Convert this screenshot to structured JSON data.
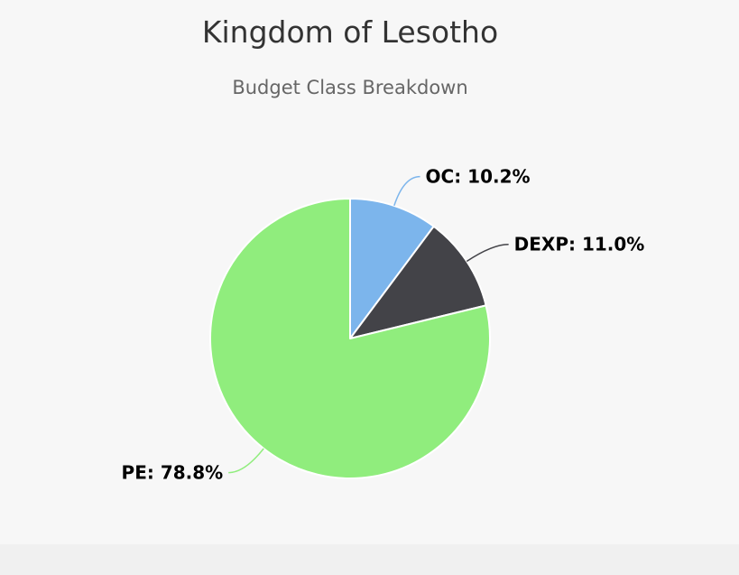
{
  "chart_data": {
    "type": "pie",
    "title": "Kingdom of Lesotho",
    "subtitle": "Budget Class Breakdown",
    "slices": [
      {
        "name": "OC",
        "value": 10.2,
        "label": "OC: 10.2%",
        "color": "#7cb5ec"
      },
      {
        "name": "DEXP",
        "value": 11.0,
        "label": "DEXP: 11.0%",
        "color": "#434348"
      },
      {
        "name": "PE",
        "value": 78.8,
        "label": "PE: 78.8%",
        "color": "#90ed7d"
      }
    ],
    "start_angle": "top",
    "direction": "clockwise",
    "legend": "none"
  }
}
